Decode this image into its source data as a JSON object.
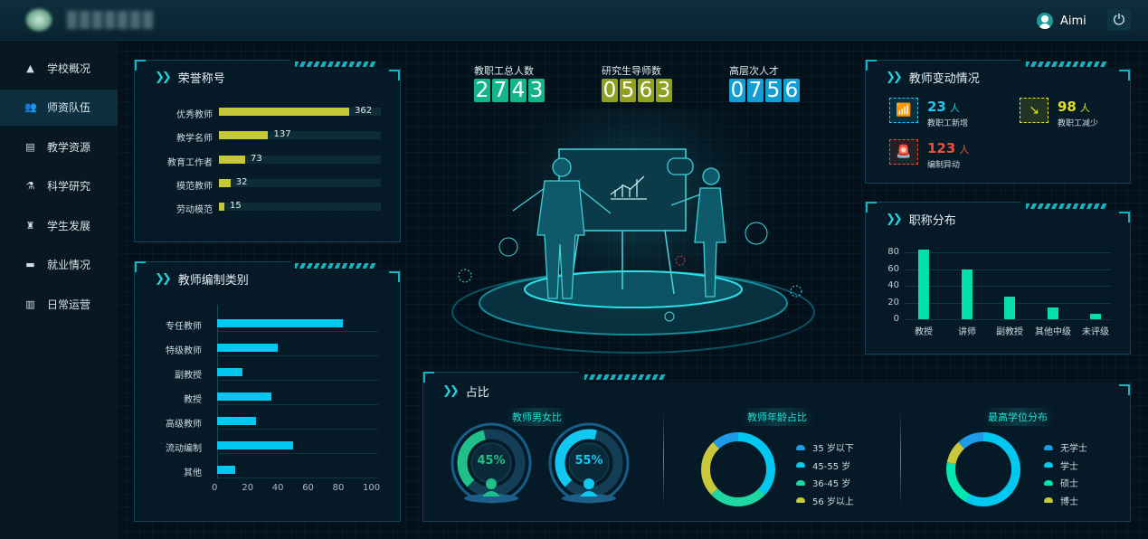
{
  "header": {
    "user_name": "Aimi",
    "user_icon": "user-avatar-icon",
    "power_icon": "power-icon",
    "power_glyph": "⏻"
  },
  "sidebar": {
    "items": [
      {
        "label": "学校概况",
        "icon": "school-icon",
        "glyph": "▲"
      },
      {
        "label": "师资队伍",
        "icon": "teachers-icon",
        "glyph": "👥",
        "active": true
      },
      {
        "label": "教学资源",
        "icon": "book-icon",
        "glyph": "▤"
      },
      {
        "label": "科学研究",
        "icon": "microscope-icon",
        "glyph": "⚗"
      },
      {
        "label": "学生发展",
        "icon": "graduate-icon",
        "glyph": "♜"
      },
      {
        "label": "就业情况",
        "icon": "briefcase-icon",
        "glyph": "▬"
      },
      {
        "label": "日常运营",
        "icon": "bar-chart-icon",
        "glyph": "▥"
      }
    ]
  },
  "stats": [
    {
      "label": "教职工总人数",
      "value": "2743",
      "color": "#12b58a"
    },
    {
      "label": "研究生导师数",
      "value": "0563",
      "color": "#8fa020"
    },
    {
      "label": "高层次人才",
      "value": "0756",
      "color": "#129ed2"
    }
  ],
  "honor": {
    "title": "荣誉称号",
    "bar_color": "#c4c83a",
    "items": [
      {
        "label": "优秀教师",
        "value": 362
      },
      {
        "label": "教学名师",
        "value": 137
      },
      {
        "label": "教育工作者",
        "value": 73
      },
      {
        "label": "模范教师",
        "value": 32
      },
      {
        "label": "劳动模范",
        "value": 15
      }
    ]
  },
  "chart_data": [
    {
      "type": "bar",
      "orientation": "horizontal",
      "title": "教师编制类别",
      "categories": [
        "专任教师",
        "特级教师",
        "副教授",
        "教授",
        "高级教师",
        "流动编制",
        "其他"
      ],
      "values": [
        83,
        40,
        17,
        36,
        26,
        50,
        12
      ],
      "xlim": [
        0,
        100
      ],
      "xticks": [
        "0",
        "20",
        "40",
        "60",
        "80",
        "100"
      ],
      "color": "#00c8f0"
    },
    {
      "type": "bar",
      "title": "职称分布",
      "categories": [
        "教授",
        "讲师",
        "副教授",
        "其他中级",
        "未评级"
      ],
      "values": [
        83,
        60,
        27,
        14,
        7
      ],
      "ylim": [
        0,
        80
      ],
      "yticks": [
        "0",
        "20",
        "40",
        "60",
        "80"
      ],
      "color": "#00e0a8"
    },
    {
      "type": "pie",
      "title": "教师年龄占比",
      "donut": true,
      "labels": [
        "35 岁以下",
        "45-55 岁",
        "36-45 岁",
        "56 岁以上"
      ],
      "values": [
        12,
        37,
        26,
        25
      ],
      "colors": [
        "#1e9be8",
        "#00c8f0",
        "#1fd7a0",
        "#c8c83a"
      ],
      "order": [
        1,
        2,
        3,
        0
      ]
    },
    {
      "type": "pie",
      "title": "最高学位分布",
      "donut": true,
      "labels": [
        "无学士",
        "学士",
        "硕士",
        "博士"
      ],
      "values": [
        12,
        58,
        20,
        10
      ],
      "colors": [
        "#1e9be8",
        "#00c8f0",
        "#00e8b0",
        "#c8c83a"
      ],
      "order": [
        1,
        2,
        3,
        0
      ]
    }
  ],
  "changes": {
    "title": "教师变动情况",
    "items": [
      {
        "value": "23",
        "unit": "人",
        "label": "教职工新增",
        "color": "#1ec8f0",
        "icon": "trend-up-icon",
        "glyph": "📶"
      },
      {
        "value": "98",
        "unit": "人",
        "label": "教职工减少",
        "color": "#e0e020",
        "icon": "trend-down-icon",
        "glyph": "↘"
      },
      {
        "value": "123",
        "unit": "人",
        "label": "编制异动",
        "color": "#e8503a",
        "icon": "alarm-icon",
        "glyph": "🚨"
      }
    ]
  },
  "ratio": {
    "title": "占比",
    "gender": {
      "title": "教师男女比",
      "female": {
        "percent": 45,
        "label": "45%",
        "color": "#1fc08a"
      },
      "male": {
        "percent": 55,
        "label": "55%",
        "color": "#10c8f0"
      }
    }
  }
}
